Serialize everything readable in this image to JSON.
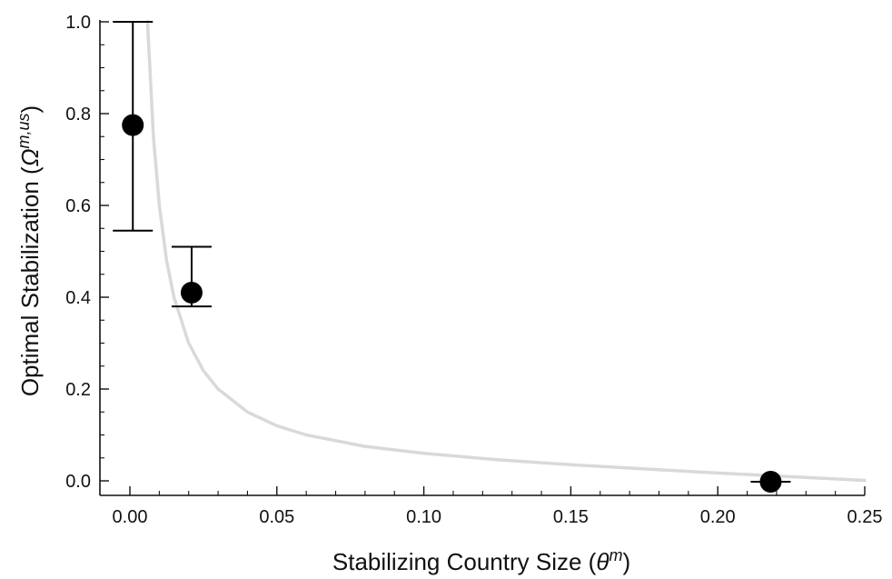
{
  "chart_data": {
    "type": "scatter",
    "xlabel": "Stabilizing Country Size (θ^m)",
    "xlabel_parts": {
      "prefix": "Stabilizing Country Size (",
      "symbol": "θ",
      "sup": "m",
      "suffix": ")"
    },
    "ylabel": "Optimal Stabilization (Ω^{m,us})",
    "ylabel_parts": {
      "prefix": "Optimal Stabilization (",
      "symbol": "Ω",
      "sup": "m,us",
      "suffix": ")"
    },
    "xlim": [
      -0.005,
      0.25
    ],
    "ylim": [
      -0.03,
      1.0
    ],
    "xticks": [
      "0.00",
      "0.05",
      "0.10",
      "0.15",
      "0.20",
      "0.25"
    ],
    "xtick_values": [
      0.0,
      0.05,
      0.1,
      0.15,
      0.2,
      0.25
    ],
    "yticks": [
      "0.0",
      "0.2",
      "0.4",
      "0.6",
      "0.8",
      "1.0"
    ],
    "ytick_values": [
      0.0,
      0.2,
      0.4,
      0.6,
      0.8,
      1.0
    ],
    "points": [
      {
        "x": 0.001,
        "y": 0.775,
        "err_low": 0.545,
        "err_high": 1.0
      },
      {
        "x": 0.021,
        "y": 0.41,
        "err_low": 0.38,
        "err_high": 0.51
      },
      {
        "x": 0.218,
        "y": -0.002,
        "err_low": -0.002,
        "err_high": -0.002
      }
    ],
    "curve": {
      "description": "theoretical relation",
      "x": [
        0.006,
        0.008,
        0.01,
        0.0125,
        0.015,
        0.02,
        0.025,
        0.03,
        0.04,
        0.05,
        0.06,
        0.08,
        0.1,
        0.125,
        0.15,
        0.175,
        0.2,
        0.225,
        0.25
      ],
      "y": [
        1.0,
        0.75,
        0.6,
        0.48,
        0.4,
        0.3,
        0.24,
        0.2,
        0.15,
        0.12,
        0.1,
        0.075,
        0.06,
        0.046,
        0.035,
        0.026,
        0.017,
        0.009,
        0.001
      ]
    },
    "colors": {
      "points": "#000000",
      "curve": "#d9d9d9",
      "axes": "#111111"
    },
    "grid": false,
    "legend": "none"
  }
}
